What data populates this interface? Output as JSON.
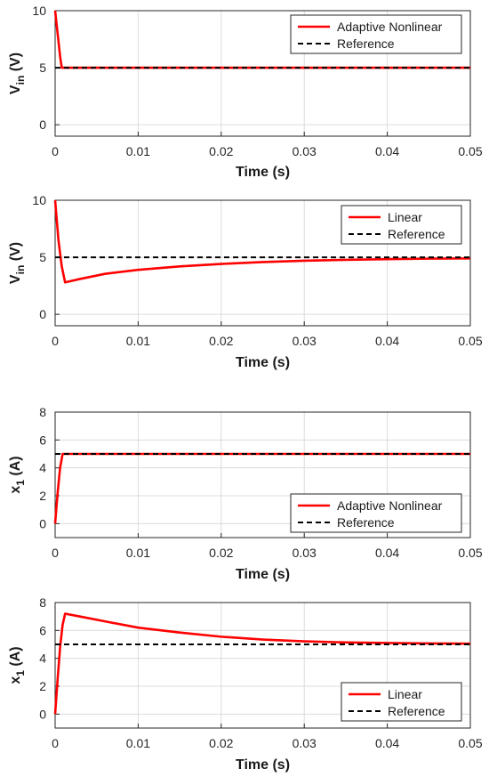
{
  "chart_data": [
    {
      "type": "line",
      "xlabel": "Time (s)",
      "ylabel": {
        "main": "V",
        "sub": "in",
        "unit": " (V)"
      },
      "xlim": [
        0,
        0.05
      ],
      "ylim": [
        -1,
        10
      ],
      "xticks": [
        "0",
        "0.01",
        "0.02",
        "0.03",
        "0.04",
        "0.05"
      ],
      "yticks": [
        "0",
        "5",
        "10"
      ],
      "grid": true,
      "legend_position": "top-right",
      "series": [
        {
          "name": "Adaptive Nonlinear",
          "color": "#ff0000",
          "style": "solid",
          "x": [
            0,
            0.0003,
            0.0006,
            0.0008,
            0.05
          ],
          "y": [
            10,
            8.0,
            6.0,
            5.0,
            5.0
          ]
        },
        {
          "name": "Reference",
          "color": "#000000",
          "style": "dashed",
          "x": [
            0,
            0.05
          ],
          "y": [
            5,
            5
          ]
        }
      ]
    },
    {
      "type": "line",
      "xlabel": "Time (s)",
      "ylabel": {
        "main": "V",
        "sub": "in",
        "unit": " (V)"
      },
      "xlim": [
        0,
        0.05
      ],
      "ylim": [
        -1,
        10
      ],
      "xticks": [
        "0",
        "0.01",
        "0.02",
        "0.03",
        "0.04",
        "0.05"
      ],
      "yticks": [
        "0",
        "5",
        "10"
      ],
      "grid": true,
      "legend_position": "top-right",
      "series": [
        {
          "name": "Linear",
          "color": "#ff0000",
          "style": "solid",
          "x": [
            0,
            0.0004,
            0.0008,
            0.0012,
            0.003,
            0.006,
            0.01,
            0.015,
            0.02,
            0.025,
            0.03,
            0.035,
            0.04,
            0.045,
            0.05
          ],
          "y": [
            10,
            6.5,
            4.2,
            2.8,
            3.1,
            3.55,
            3.9,
            4.2,
            4.42,
            4.58,
            4.7,
            4.78,
            4.84,
            4.88,
            4.9
          ]
        },
        {
          "name": "Reference",
          "color": "#000000",
          "style": "dashed",
          "x": [
            0,
            0.05
          ],
          "y": [
            5,
            5
          ]
        }
      ]
    },
    {
      "type": "line",
      "xlabel": "Time (s)",
      "ylabel": {
        "main": "x",
        "sub": "1",
        "unit": " (A)"
      },
      "xlim": [
        0,
        0.05
      ],
      "ylim": [
        -1,
        8
      ],
      "xticks": [
        "0",
        "0.01",
        "0.02",
        "0.03",
        "0.04",
        "0.05"
      ],
      "yticks": [
        "0",
        "2",
        "4",
        "6",
        "8"
      ],
      "grid": true,
      "legend_position": "bottom-right",
      "series": [
        {
          "name": "Adaptive Nonlinear",
          "color": "#ff0000",
          "style": "solid",
          "x": [
            0,
            0.0003,
            0.0006,
            0.0009,
            0.05
          ],
          "y": [
            0,
            2.2,
            4.0,
            5.0,
            5.0
          ]
        },
        {
          "name": "Reference",
          "color": "#000000",
          "style": "dashed",
          "x": [
            0,
            0.05
          ],
          "y": [
            5,
            5
          ]
        }
      ]
    },
    {
      "type": "line",
      "xlabel": "Time (s)",
      "ylabel": {
        "main": "x",
        "sub": "1",
        "unit": " (A)"
      },
      "xlim": [
        0,
        0.05
      ],
      "ylim": [
        -1,
        8
      ],
      "xticks": [
        "0",
        "0.01",
        "0.02",
        "0.03",
        "0.04",
        "0.05"
      ],
      "yticks": [
        "0",
        "2",
        "4",
        "6",
        "8"
      ],
      "grid": true,
      "legend_position": "bottom-right",
      "series": [
        {
          "name": "Linear",
          "color": "#ff0000",
          "style": "solid",
          "x": [
            0,
            0.0003,
            0.0006,
            0.0009,
            0.0012,
            0.003,
            0.006,
            0.01,
            0.015,
            0.02,
            0.025,
            0.03,
            0.035,
            0.04,
            0.045,
            0.05
          ],
          "y": [
            0,
            2.5,
            4.8,
            6.4,
            7.2,
            7.0,
            6.65,
            6.2,
            5.85,
            5.55,
            5.35,
            5.22,
            5.14,
            5.1,
            5.07,
            5.05
          ]
        },
        {
          "name": "Reference",
          "color": "#000000",
          "style": "dashed",
          "x": [
            0,
            0.05
          ],
          "y": [
            5,
            5
          ]
        }
      ]
    }
  ]
}
